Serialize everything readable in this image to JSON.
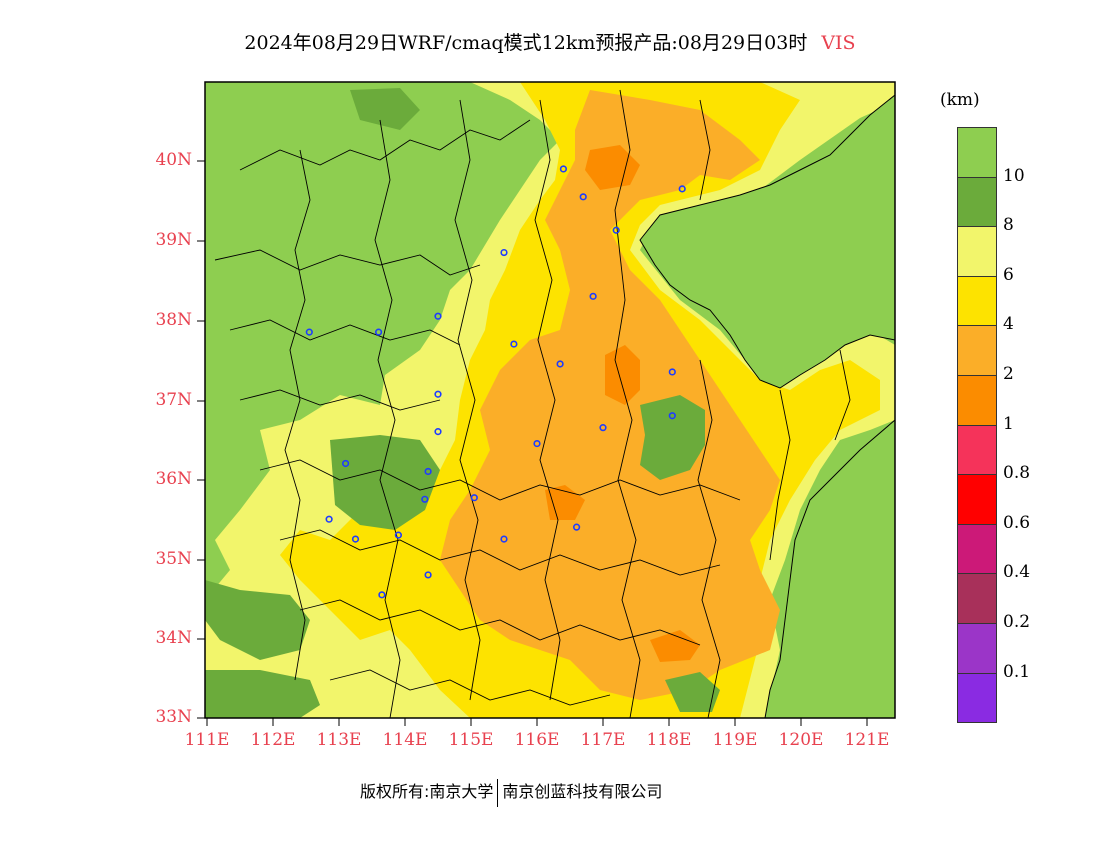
{
  "title": {
    "text": "2024年08月29日WRF/cmaq模式12km预报产品:08月29日03时",
    "variable": "VIS"
  },
  "footer": {
    "left": "版权所有:南京大学",
    "right": "南京创蓝科技有限公司"
  },
  "map": {
    "lat_ticks": [
      "40N",
      "39N",
      "38N",
      "37N",
      "36N",
      "35N",
      "34N",
      "33N"
    ],
    "lon_ticks": [
      "111E",
      "112E",
      "113E",
      "114E",
      "115E",
      "116E",
      "117E",
      "118E",
      "119E",
      "120E",
      "121E"
    ],
    "colors": {
      "gt10": "#8ece50",
      "c8_10": "#6bab3b",
      "c6_8": "#f2f56b",
      "c4_6": "#fde300",
      "c2_4": "#fbae28",
      "c1_2": "#fb8c00",
      "sea": "#8ece50"
    },
    "stations": [
      [
        116.4,
        39.9
      ],
      [
        116.7,
        39.55
      ],
      [
        117.2,
        39.13
      ],
      [
        118.2,
        39.65
      ],
      [
        115.5,
        38.85
      ],
      [
        114.5,
        38.05
      ],
      [
        116.85,
        38.3
      ],
      [
        112.55,
        37.85
      ],
      [
        113.6,
        37.85
      ],
      [
        115.65,
        37.7
      ],
      [
        116.35,
        37.45
      ],
      [
        118.05,
        37.35
      ],
      [
        114.5,
        37.07
      ],
      [
        114.5,
        36.6
      ],
      [
        117.0,
        36.65
      ],
      [
        118.05,
        36.8
      ],
      [
        116.0,
        36.45
      ],
      [
        113.1,
        36.2
      ],
      [
        114.35,
        36.1
      ],
      [
        114.3,
        35.75
      ],
      [
        115.05,
        35.77
      ],
      [
        112.85,
        35.5
      ],
      [
        113.25,
        35.25
      ],
      [
        113.9,
        35.3
      ],
      [
        115.5,
        35.25
      ],
      [
        116.6,
        35.4
      ],
      [
        114.35,
        34.8
      ],
      [
        113.65,
        34.55
      ]
    ]
  },
  "colorbar": {
    "unit": "(km)",
    "levels": [
      {
        "label": "10",
        "color": "#8ece50"
      },
      {
        "label": "8",
        "color": "#6bab3b"
      },
      {
        "label": "6",
        "color": "#f2f56b"
      },
      {
        "label": "4",
        "color": "#fde300"
      },
      {
        "label": "2",
        "color": "#fbae28"
      },
      {
        "label": "1",
        "color": "#fb8c00"
      },
      {
        "label": "0.8",
        "color": "#f5335a"
      },
      {
        "label": "0.6",
        "color": "#ff0000"
      },
      {
        "label": "0.4",
        "color": "#cc1978"
      },
      {
        "label": "0.2",
        "color": "#a8305a"
      },
      {
        "label": "0.1",
        "color": "#9b35c8"
      },
      {
        "label": "",
        "color": "#8a2be2"
      }
    ]
  }
}
